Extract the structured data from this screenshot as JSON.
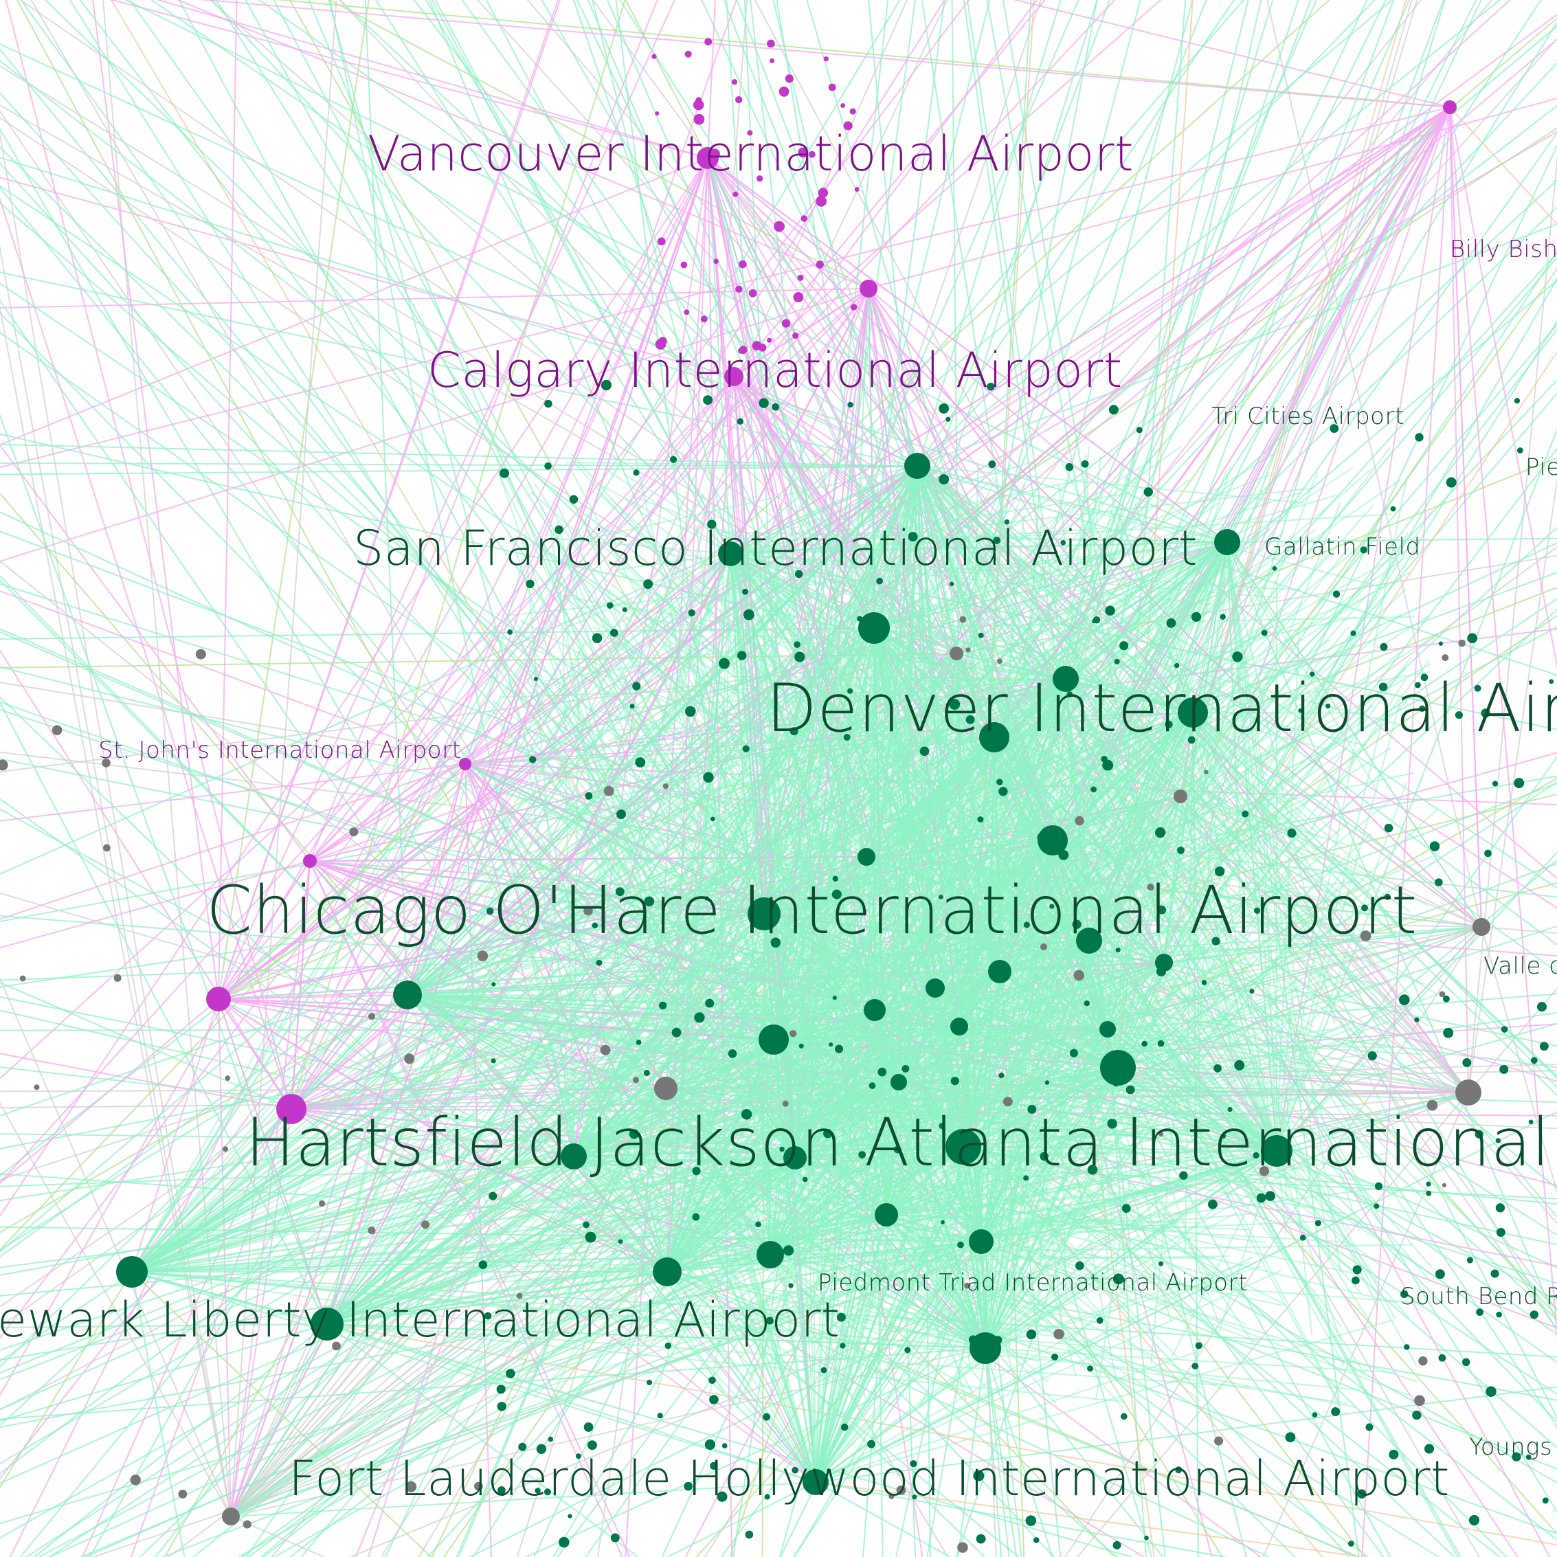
{
  "colors": {
    "background": "#ffffff",
    "us_node": "#00774a",
    "us_edge": "#8ef2c4",
    "canada_node": "#c237c9",
    "canada_edge": "#f7a8f5",
    "canada_label": "#7d1284",
    "other_node": "#777777",
    "other_edge": "#d2d2d2",
    "us_label": "#0c4d2e",
    "misc_edge_green": "#b4e38c",
    "misc_edge_orange": "#f7c9a0"
  },
  "labels": [
    {
      "id": "vancouver",
      "text": "Vancouver International Airport",
      "group": "canada",
      "size": "l"
    },
    {
      "id": "calgary",
      "text": "Calgary International Airport",
      "group": "canada",
      "size": "l"
    },
    {
      "id": "billy-bishop",
      "text": "Billy Bish",
      "group": "canada",
      "size": "s"
    },
    {
      "id": "st-johns",
      "text": "St. John's International Airport",
      "group": "canada",
      "size": "s"
    },
    {
      "id": "tri-cities",
      "text": "Tri Cities Airport",
      "group": "us",
      "size": "s"
    },
    {
      "id": "pie",
      "text": "Pie",
      "group": "us",
      "size": "s"
    },
    {
      "id": "sfo",
      "text": "San Francisco International Airport",
      "group": "us",
      "size": "l"
    },
    {
      "id": "gallatin",
      "text": "Gallatin Field",
      "group": "us",
      "size": "s"
    },
    {
      "id": "denver",
      "text": "Denver International Airpo",
      "group": "us",
      "size": "xl"
    },
    {
      "id": "ohare",
      "text": "Chicago O'Hare International Airport",
      "group": "us",
      "size": "xl"
    },
    {
      "id": "valle",
      "text": "Valle d",
      "group": "us",
      "size": "s"
    },
    {
      "id": "atlanta",
      "text": "Hartsfield Jackson Atlanta International Air",
      "group": "us",
      "size": "xl"
    },
    {
      "id": "piedmont",
      "text": "Piedmont Triad International Airport",
      "group": "us",
      "size": "s"
    },
    {
      "id": "newark",
      "text": "ewark Liberty International Airport",
      "group": "us",
      "size": "l"
    },
    {
      "id": "south-bend",
      "text": "South Bend R",
      "group": "us",
      "size": "s"
    },
    {
      "id": "youngs",
      "text": "Youngs",
      "group": "us",
      "size": "s"
    },
    {
      "id": "fort-lauderdale",
      "text": "Fort Lauderdale Hollywood International Airport",
      "group": "us",
      "size": "l"
    }
  ]
}
